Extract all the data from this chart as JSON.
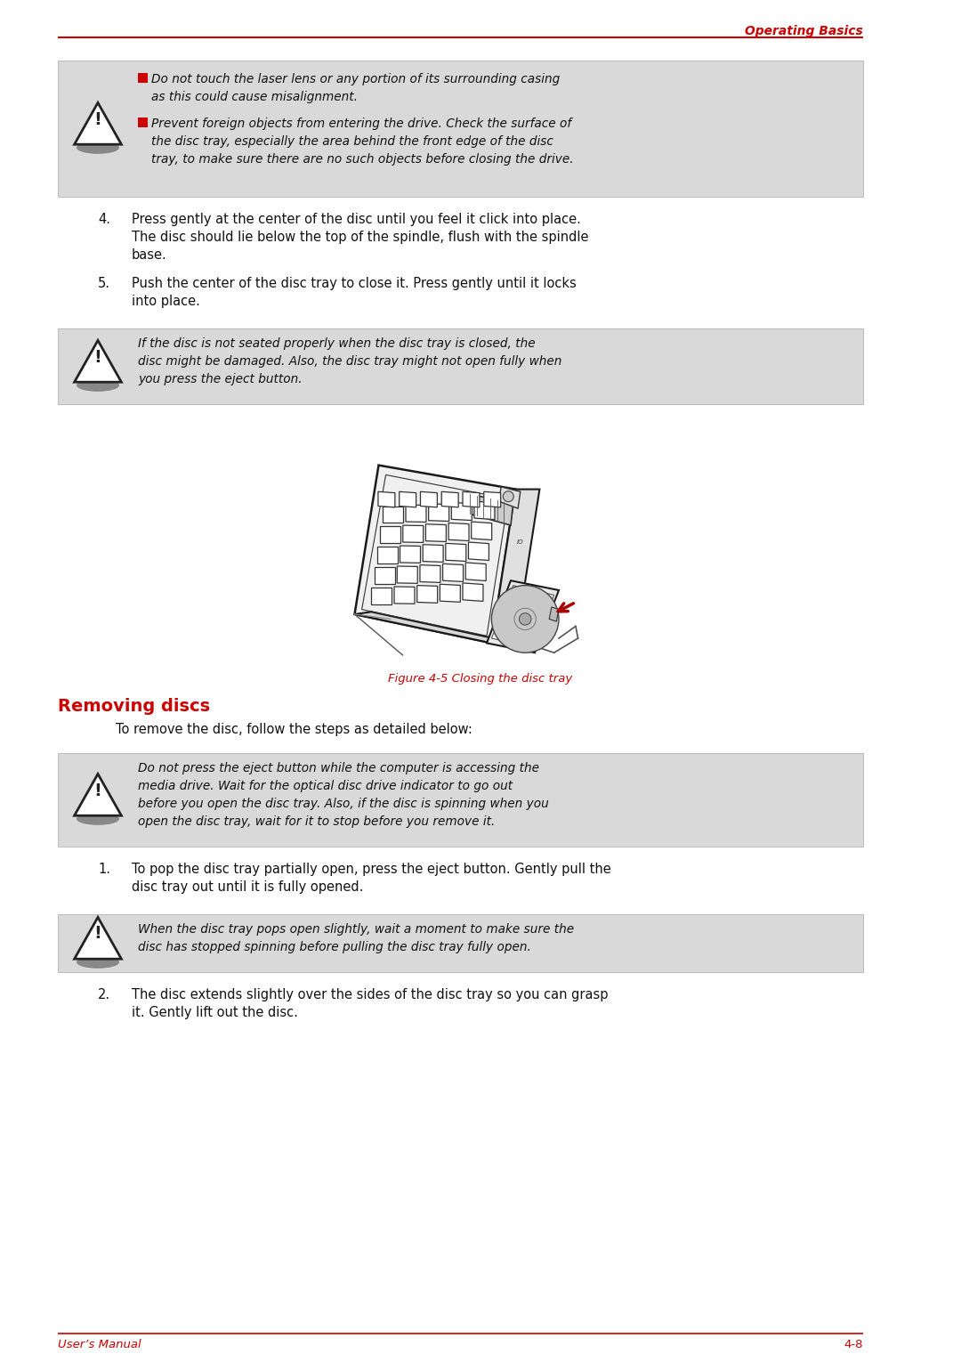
{
  "page_title": "Operating Basics",
  "footer_left": "User’s Manual",
  "footer_right": "4-8",
  "header_line_color": "#cc0000",
  "bg_color": "#ffffff",
  "warning_bg": "#d9d9d9",
  "section_title": "Removing discs",
  "section_title_color": "#cc0000",
  "figure_caption": "Figure 4-5 Closing the disc tray",
  "figure_caption_color": "#cc0000",
  "warning1_bullets": [
    "Do not touch the laser lens or any portion of its surrounding casing as this could cause misalignment.",
    "Prevent foreign objects from entering the drive. Check the surface of the disc tray, especially the area behind the front edge of the disc tray, to make sure there are no such objects before closing the drive."
  ],
  "step4": "Press gently at the center of the disc until you feel it click into place. The disc should lie below the top of the spindle, flush with the spindle base.",
  "step5": "Push the center of the disc tray to close it. Press gently until it locks into place.",
  "warning2": "If the disc is not seated properly when the disc tray is closed, the disc might be damaged. Also, the disc tray might not open fully when you press the eject button.",
  "intro_text": "To remove the disc, follow the steps as detailed below:",
  "warning3": "Do not press the eject button while the computer is accessing the media drive. Wait for the optical disc drive indicator to go out before you open the disc tray. Also, if the disc is spinning when you open the disc tray, wait for it to stop before you remove it.",
  "step1": "To pop the disc tray partially open, press the eject button. Gently pull the disc tray out until it is fully opened.",
  "warning4": "When the disc tray pops open slightly, wait a moment to make sure the disc has stopped spinning before pulling the disc tray fully open.",
  "step2": "The disc extends slightly over the sides of the disc tray so you can grasp it. Gently lift out the disc.",
  "text_color": "#111111",
  "italic_color": "#111111",
  "warning_border": "#bbbbbb",
  "red_bullet": "#cc0000",
  "arrow_color": "#aa0000"
}
